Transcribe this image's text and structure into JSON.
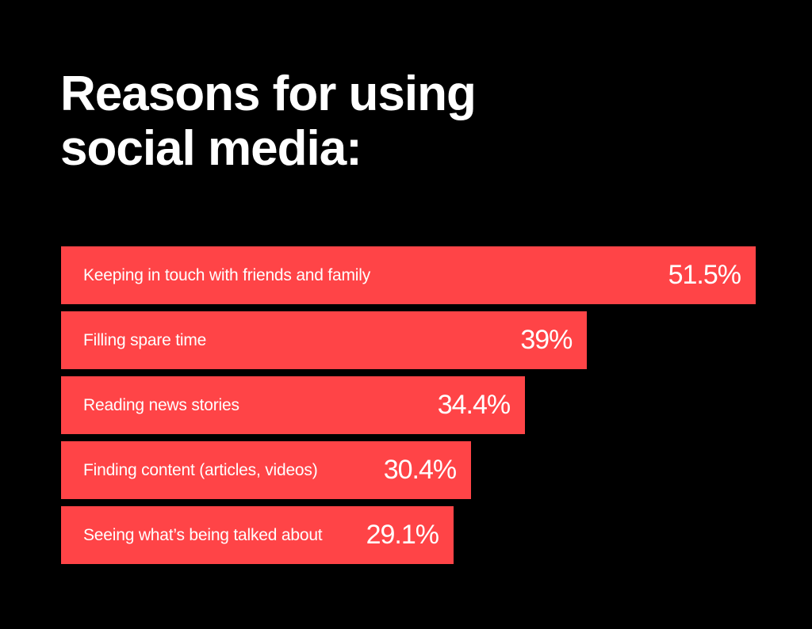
{
  "chart_data": {
    "type": "bar",
    "orientation": "horizontal",
    "title_lines": [
      "Reasons for using",
      "social media:"
    ],
    "categories": [
      "Keeping in touch with friends and family",
      "Filling spare time",
      "Reading news stories",
      "Finding content (articles, videos)",
      "Seeing what’s being talked about"
    ],
    "values": [
      51.5,
      39,
      34.4,
      30.4,
      29.1
    ],
    "value_labels": [
      "51.5%",
      "39%",
      "34.4%",
      "30.4%",
      "29.1%"
    ],
    "xlim": [
      0,
      51.5
    ],
    "grid": false,
    "bar_color": "#ff4447",
    "background_color": "#000000",
    "text_color": "#ffffff"
  }
}
